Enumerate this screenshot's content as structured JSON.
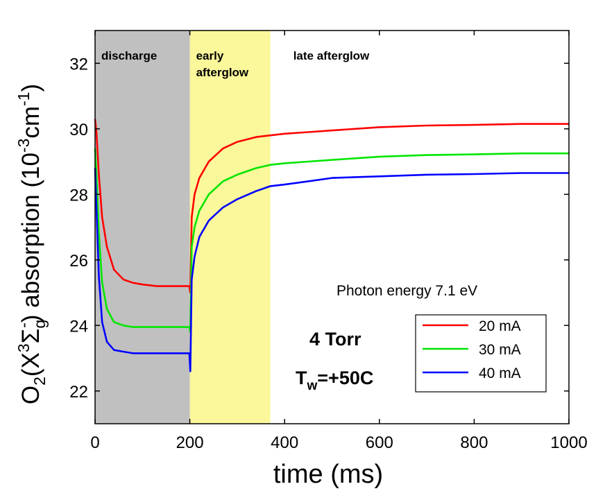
{
  "chart_data": {
    "type": "line",
    "xlabel": "time (ms)",
    "ylabel": {
      "prefix": "O",
      "sub1": "2",
      "mid1": "(X",
      "sup1": "3",
      "mid2": "Σ",
      "sub2": "g",
      "sup2": "-",
      "mid3": ") absorption (10",
      "sup3": "-3",
      "mid4": "cm",
      "sup4": "-1",
      "suffix": ")"
    },
    "xlim": [
      0,
      1000
    ],
    "ylim": [
      21,
      33
    ],
    "xticks": [
      0,
      200,
      400,
      600,
      800,
      1000
    ],
    "yticks": [
      22,
      24,
      26,
      28,
      30,
      32
    ],
    "regions": [
      {
        "label_lines": [
          "discharge"
        ],
        "x": [
          0,
          200
        ],
        "color": "#c0c0c0"
      },
      {
        "label_lines": [
          "early",
          "afterglow"
        ],
        "x": [
          200,
          370
        ],
        "color": "#fbf79b"
      },
      {
        "label_lines": [
          "late afterglow"
        ],
        "x": [
          370,
          1000
        ],
        "color": "#ffffff"
      }
    ],
    "annotations": {
      "photon_energy": "Photon energy 7.1 eV",
      "pressure": "4 Torr",
      "tw_prefix": "T",
      "tw_sub": "w",
      "tw_value": "=+50C"
    },
    "legend_position": "lower-right",
    "series": [
      {
        "name": "20 mA",
        "color": "#ff0000",
        "x": [
          0,
          3,
          8,
          15,
          25,
          40,
          60,
          80,
          100,
          130,
          160,
          199,
          201,
          204,
          210,
          220,
          240,
          270,
          300,
          340,
          370,
          400,
          450,
          500,
          600,
          700,
          800,
          900,
          1000
        ],
        "y": [
          30.3,
          29.9,
          28.6,
          27.3,
          26.4,
          25.7,
          25.4,
          25.3,
          25.25,
          25.2,
          25.2,
          25.2,
          25.0,
          27.3,
          28.0,
          28.5,
          29.0,
          29.4,
          29.6,
          29.75,
          29.8,
          29.85,
          29.9,
          29.95,
          30.05,
          30.1,
          30.12,
          30.15,
          30.15
        ]
      },
      {
        "name": "30 mA",
        "color": "#00e600",
        "x": [
          0,
          3,
          8,
          15,
          25,
          40,
          60,
          80,
          100,
          130,
          160,
          199,
          201,
          204,
          210,
          220,
          240,
          270,
          300,
          340,
          370,
          400,
          450,
          500,
          600,
          700,
          800,
          900,
          1000
        ],
        "y": [
          29.4,
          28.6,
          26.8,
          25.3,
          24.5,
          24.1,
          24.0,
          23.95,
          23.95,
          23.95,
          23.95,
          23.95,
          23.8,
          26.4,
          27.0,
          27.5,
          28.0,
          28.4,
          28.6,
          28.8,
          28.9,
          28.95,
          29.0,
          29.05,
          29.15,
          29.2,
          29.22,
          29.25,
          29.25
        ]
      },
      {
        "name": "40 mA",
        "color": "#0000ff",
        "x": [
          0,
          3,
          8,
          15,
          25,
          40,
          60,
          80,
          100,
          130,
          160,
          199,
          201,
          204,
          210,
          220,
          240,
          270,
          300,
          340,
          370,
          400,
          450,
          500,
          600,
          700,
          800,
          900,
          1000
        ],
        "y": [
          28.8,
          27.6,
          25.5,
          24.1,
          23.5,
          23.25,
          23.2,
          23.15,
          23.15,
          23.15,
          23.15,
          23.15,
          22.6,
          25.4,
          26.1,
          26.7,
          27.2,
          27.6,
          27.85,
          28.1,
          28.25,
          28.3,
          28.4,
          28.5,
          28.55,
          28.6,
          28.62,
          28.65,
          28.65
        ]
      }
    ]
  }
}
